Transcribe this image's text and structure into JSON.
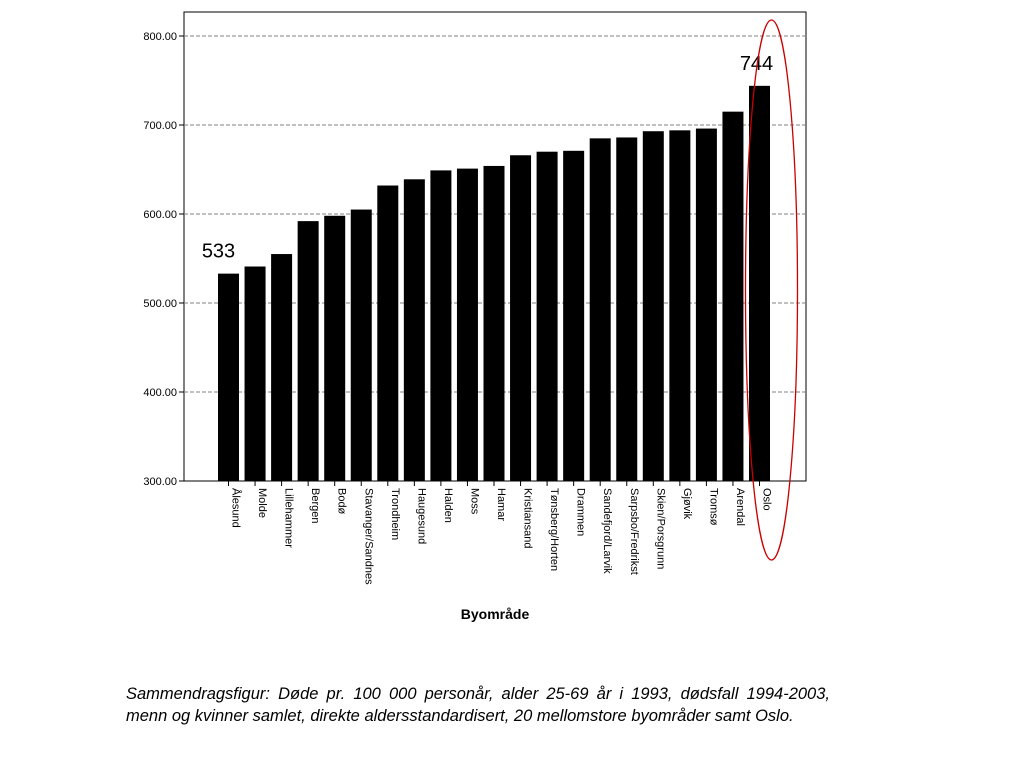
{
  "chart_data": {
    "type": "bar",
    "xlabel": "Byområde",
    "ylabel": "",
    "ylim": [
      300,
      800
    ],
    "yticks": [
      "300.00",
      "400.00",
      "500.00",
      "600.00",
      "700.00",
      "800.00"
    ],
    "grid": true,
    "bar_color": "#000000",
    "highlight_color": "#cc0000",
    "categories": [
      "Ålesund",
      "Molde",
      "Lillehammer",
      "Bergen",
      "Bodø",
      "Stavanger/Sandnes",
      "Trondheim",
      "Haugesund",
      "Halden",
      "Moss",
      "Hamar",
      "Kristiansand",
      "Tønsberg/Horten",
      "Drammen",
      "Sandefjord/Larvik",
      "Sarpsbo/Fredrikst",
      "Skien/Porsgrunn",
      "Gjøvik",
      "Tromsø",
      "Arendal",
      "Oslo"
    ],
    "values": [
      533,
      541,
      555,
      592,
      598,
      605,
      632,
      639,
      649,
      651,
      654,
      666,
      670,
      671,
      685,
      686,
      693,
      694,
      696,
      715,
      744
    ],
    "annotations": [
      {
        "category": "Ålesund",
        "text": "533"
      },
      {
        "category": "Oslo",
        "text": "744",
        "highlight": "ellipse"
      }
    ]
  },
  "caption": "Sammendragsfigur: Døde pr. 100 000 personår, alder 25-69 år i 1993, dødsfall 1994-2003, menn og kvinner samlet, direkte aldersstandardisert, 20 mellomstore byområder samt Oslo."
}
